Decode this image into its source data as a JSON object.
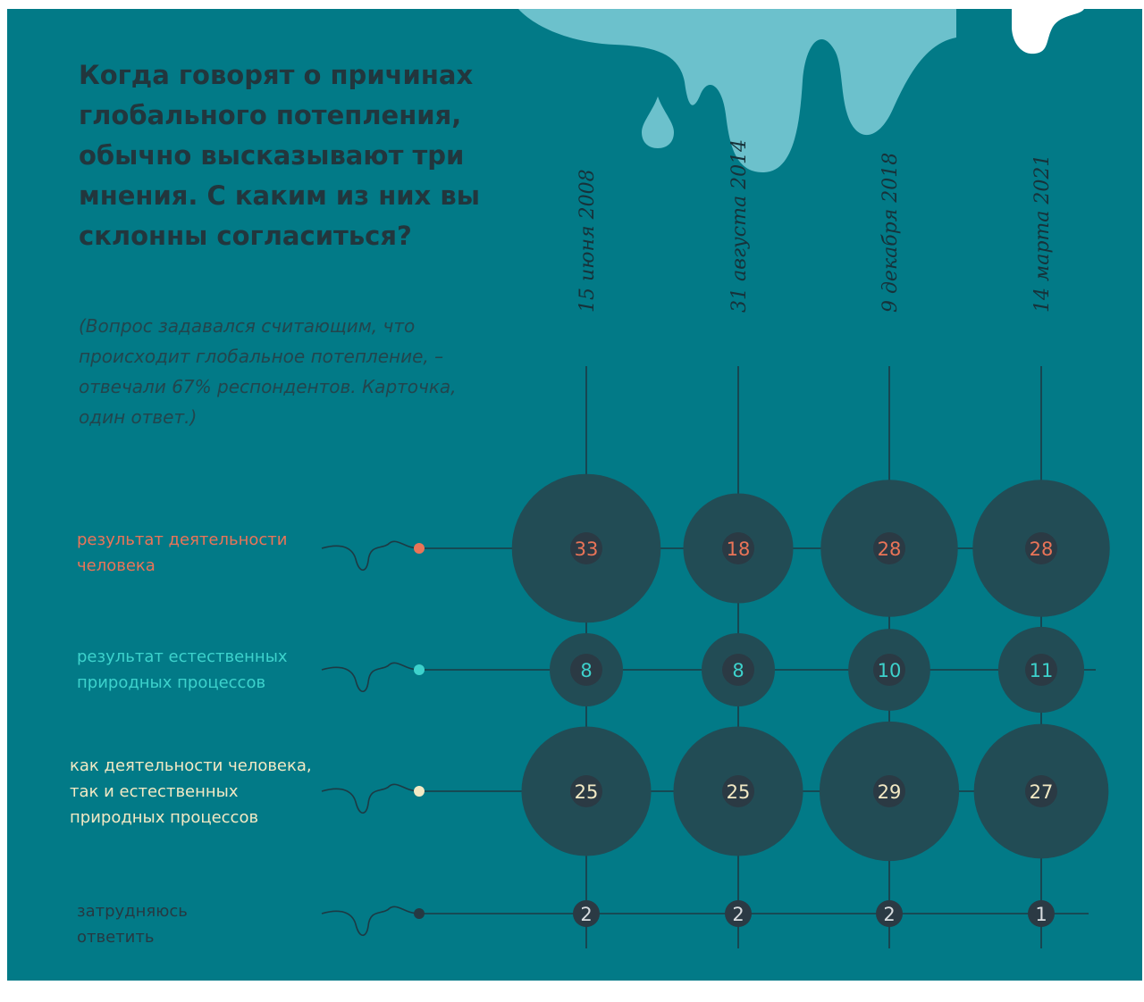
{
  "title": "Когда говорят о причинах глобального потепления, обычно высказывают три мнения. С каким из них вы склонны согласиться?",
  "note": "(Вопрос задавался считающим, что происходит глобальное потепление, – отвечали 67% респондентов. Карточка, один ответ.)",
  "colors": {
    "background": "#027a87",
    "bubble": "#224c55",
    "core": "#2b3a44",
    "drip": "#6cc1cc",
    "grid": "#1d3a44"
  },
  "chart_data": {
    "type": "bubble-table",
    "categories": [
      "15 июня 2008",
      "31 августа 2014",
      "9 декабря 2018",
      "14 марта 2021"
    ],
    "series": [
      {
        "name": "результат деятельности человека",
        "color": "#ea7458",
        "values": [
          33,
          18,
          28,
          28
        ]
      },
      {
        "name": "результат естественных природных процессов",
        "color": "#3dd2cc",
        "values": [
          8,
          8,
          10,
          11
        ]
      },
      {
        "name": "как деятельности человека, так и естественных природных процессов",
        "color": "#f2e9c4",
        "values": [
          25,
          25,
          29,
          27
        ]
      },
      {
        "name": "затрудняюсь ответить",
        "color": "#263942",
        "values": [
          2,
          2,
          2,
          1
        ]
      }
    ],
    "unit": "%"
  }
}
